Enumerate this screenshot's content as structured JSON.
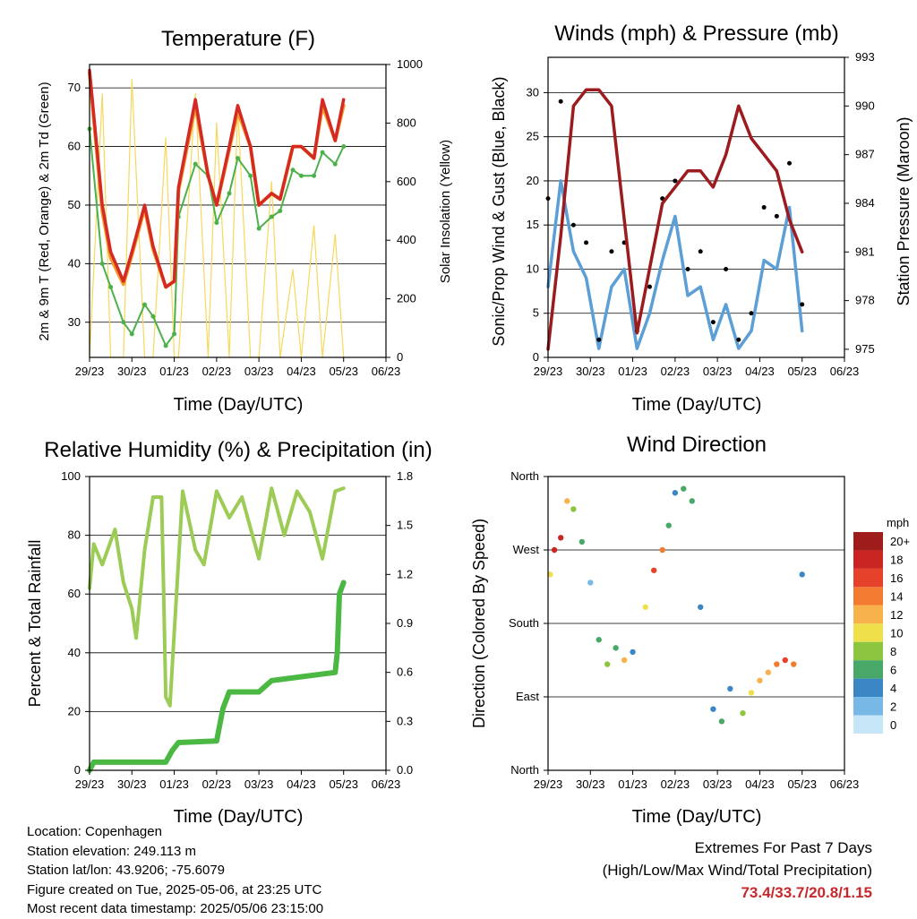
{
  "x_ticks": [
    "29/23",
    "30/23",
    "01/23",
    "02/23",
    "03/23",
    "04/23",
    "05/23",
    "06/23"
  ],
  "x_title": "Time (Day/UTC)",
  "colors": {
    "temp_red": "#d42a23",
    "temp_orange": "#f39a2b",
    "dewpoint_green": "#4cb14a",
    "solar_yellow": "#f6d85c",
    "gust_black": "#000000",
    "wind_blue": "#5b9fd6",
    "pressure_maroon": "#9b1b1e",
    "rh_lightgreen": "#9ccc56",
    "precip_green": "#4cb844",
    "extremes_red": "#c8282d"
  },
  "chart_data": [
    {
      "id": "temperature",
      "type": "line",
      "title": "Temperature (F)",
      "xlabel": "Time (Day/UTC)",
      "ylabel_left": "2m & 9m T (Red, Orange) & 2m Td (Green)",
      "ylabel_right": "Solar Insolation (Yellow)",
      "ylim_left": [
        24,
        74
      ],
      "yticks_left": [
        "30",
        "40",
        "50",
        "60",
        "70"
      ],
      "ylim_right": [
        0,
        1000
      ],
      "yticks_right": [
        "0",
        "200",
        "400",
        "600",
        "800",
        "1000"
      ],
      "x_days": [
        0,
        0.3,
        0.5,
        0.8,
        1.0,
        1.3,
        1.5,
        1.8,
        2.0,
        2.1,
        2.5,
        2.8,
        3.0,
        3.3,
        3.5,
        3.8,
        4.0,
        4.3,
        4.5,
        4.8,
        5.0,
        5.3,
        5.5,
        5.8,
        6.0
      ],
      "series": [
        {
          "name": "2m T",
          "color": "#d42a23",
          "values": [
            73,
            50,
            42,
            37,
            42,
            50,
            43,
            36,
            37,
            53,
            68,
            55,
            50,
            60,
            67,
            60,
            50,
            52,
            51,
            60,
            60,
            58,
            68,
            61,
            68
          ]
        },
        {
          "name": "9m T",
          "color": "#f39a2b",
          "values": [
            72.5,
            49,
            41,
            36.5,
            41.5,
            49.5,
            42.5,
            36,
            37,
            52.5,
            67,
            55,
            50,
            59.5,
            66,
            60,
            50,
            52,
            51,
            60,
            60,
            58,
            67,
            61,
            67
          ]
        },
        {
          "name": "2m Td",
          "color": "#4cb14a",
          "values": [
            63,
            40,
            36,
            30,
            28,
            33,
            31,
            26,
            28,
            48,
            57,
            55,
            47,
            52,
            58,
            55,
            46,
            48,
            49,
            56,
            55,
            55,
            59,
            57,
            60
          ]
        },
        {
          "name": "Solar",
          "color": "#f6d85c",
          "values": [
            0,
            900,
            0,
            0,
            950,
            0,
            0,
            750,
            0,
            0,
            900,
            0,
            800,
            0,
            850,
            0,
            0,
            600,
            0,
            300,
            0,
            450,
            0,
            420,
            0
          ]
        }
      ]
    },
    {
      "id": "winds",
      "type": "scatter",
      "title": "Winds (mph) & Pressure (mb)",
      "xlabel": "Time (Day/UTC)",
      "ylabel_left": "Sonic/Prop Wind & Gust (Blue, Black)",
      "ylabel_right": "Station Pressure (Maroon)",
      "ylim_left": [
        0,
        34
      ],
      "yticks_left": [
        "0",
        "5",
        "10",
        "15",
        "20",
        "25",
        "30"
      ],
      "ylim_right": [
        974.5,
        993
      ],
      "yticks_right": [
        "975",
        "978",
        "981",
        "984",
        "987",
        "990",
        "993"
      ],
      "x_days": [
        0,
        0.3,
        0.6,
        0.9,
        1.2,
        1.5,
        1.8,
        2.1,
        2.4,
        2.7,
        3.0,
        3.3,
        3.6,
        3.9,
        4.2,
        4.5,
        4.8,
        5.1,
        5.4,
        5.7,
        6.0
      ],
      "series": [
        {
          "name": "Gust",
          "color": "#000000",
          "values": [
            18,
            29,
            15,
            13,
            2,
            12,
            13,
            3,
            8,
            18,
            20,
            10,
            12,
            4,
            10,
            2,
            5,
            17,
            16,
            22,
            6
          ]
        },
        {
          "name": "Wind",
          "color": "#5b9fd6",
          "values": [
            8,
            20,
            12,
            9,
            1,
            8,
            10,
            1,
            5,
            11,
            16,
            7,
            8,
            2,
            6,
            1,
            3,
            11,
            10,
            17,
            3
          ]
        },
        {
          "name": "Pressure",
          "color": "#9b1b1e",
          "values": [
            975,
            982,
            990,
            991,
            991,
            990,
            983,
            976,
            980,
            984,
            985,
            986,
            986,
            985,
            987,
            990,
            988,
            987,
            986,
            983,
            981
          ]
        }
      ]
    },
    {
      "id": "rh_precip",
      "type": "line",
      "title": "Relative Humidity (%) & Precipitation (in)",
      "xlabel": "Time (Day/UTC)",
      "ylabel_left": "Percent & Total Rainfall",
      "ylim_left": [
        0,
        100
      ],
      "yticks_left": [
        "0",
        "20",
        "40",
        "60",
        "80",
        "100"
      ],
      "ylim_right": [
        0,
        1.8
      ],
      "yticks_right": [
        "0.0",
        "0.3",
        "0.6",
        "0.9",
        "1.2",
        "1.5",
        "1.8"
      ],
      "series": [
        {
          "name": "RH",
          "color": "#9ccc56",
          "x_days": [
            0,
            0.1,
            0.3,
            0.6,
            0.8,
            1.0,
            1.1,
            1.3,
            1.5,
            1.7,
            1.75,
            1.8,
            1.9,
            2.0,
            2.2,
            2.5,
            2.7,
            3.0,
            3.3,
            3.6,
            4.0,
            4.3,
            4.6,
            4.9,
            5.2,
            5.5,
            5.8,
            6.0
          ],
          "values": [
            62,
            77,
            70,
            82,
            64,
            55,
            45,
            75,
            93,
            93,
            60,
            25,
            22,
            47,
            95,
            75,
            70,
            95,
            86,
            93,
            72,
            96,
            80,
            95,
            88,
            72,
            95,
            96
          ]
        },
        {
          "name": "Total Precip",
          "color": "#4cb844",
          "x_days": [
            0,
            0.1,
            1.8,
            1.95,
            2.1,
            3.0,
            3.15,
            3.3,
            4.0,
            4.3,
            4.6,
            5.8,
            5.85,
            5.9,
            6.0
          ],
          "values": [
            0,
            0.05,
            0.05,
            0.12,
            0.17,
            0.18,
            0.38,
            0.48,
            0.48,
            0.55,
            0.56,
            0.6,
            0.72,
            1.08,
            1.15
          ]
        }
      ]
    },
    {
      "id": "wind_direction",
      "type": "scatter",
      "title": "Wind Direction",
      "xlabel": "Time (Day/UTC)",
      "ylabel_left": "Direction (Colored By Speed)",
      "ylim_left": [
        0,
        360
      ],
      "yticks_left": [
        "North",
        "East",
        "South",
        "West",
        "North"
      ],
      "colorbar": {
        "label": "mph",
        "labels": [
          "20+",
          "18",
          "16",
          "14",
          "12",
          "10",
          "8",
          "6",
          "4",
          "2",
          "0"
        ],
        "colors": [
          "#9e1c1c",
          "#c92523",
          "#e6412a",
          "#f37b2f",
          "#f8b24c",
          "#efe04b",
          "#8cc63e",
          "#48a868",
          "#3b86c5",
          "#78b8e6",
          "#c6e6f7"
        ]
      },
      "x_days": [
        0.05,
        0.15,
        0.3,
        0.45,
        0.6,
        0.8,
        1.0,
        1.2,
        1.4,
        1.6,
        1.8,
        2.0,
        2.3,
        2.5,
        2.7,
        2.85,
        3.0,
        3.2,
        3.4,
        3.6,
        3.9,
        4.1,
        4.3,
        4.6,
        4.8,
        5.0,
        5.2,
        5.4,
        5.6,
        5.8,
        6.0
      ],
      "values": [
        240,
        270,
        285,
        330,
        320,
        280,
        230,
        160,
        130,
        150,
        135,
        145,
        200,
        245,
        270,
        300,
        340,
        345,
        330,
        200,
        75,
        60,
        100,
        70,
        95,
        110,
        120,
        130,
        135,
        130,
        240
      ],
      "speeds": [
        10,
        18,
        17,
        12,
        8,
        5,
        2,
        6,
        8,
        5,
        12,
        3,
        10,
        16,
        14,
        6,
        4,
        5,
        6,
        3,
        4,
        6,
        3,
        8,
        10,
        12,
        12,
        14,
        16,
        14,
        4
      ]
    }
  ],
  "info": {
    "location": "Location: Copenhagen",
    "elevation": "Station elevation: 249.113 m",
    "latlon": "Station lat/lon: 43.9206; -75.6079",
    "created": "Figure created on Tue, 2025-05-06, at 23:25 UTC",
    "recent": "Most recent data timestamp: 2025/05/06 23:15:00"
  },
  "extremes": {
    "title": "Extremes For Past 7 Days",
    "subtitle": "(High/Low/Max Wind/Total Precipitation)",
    "values": "73.4/33.7/20.8/1.15"
  }
}
